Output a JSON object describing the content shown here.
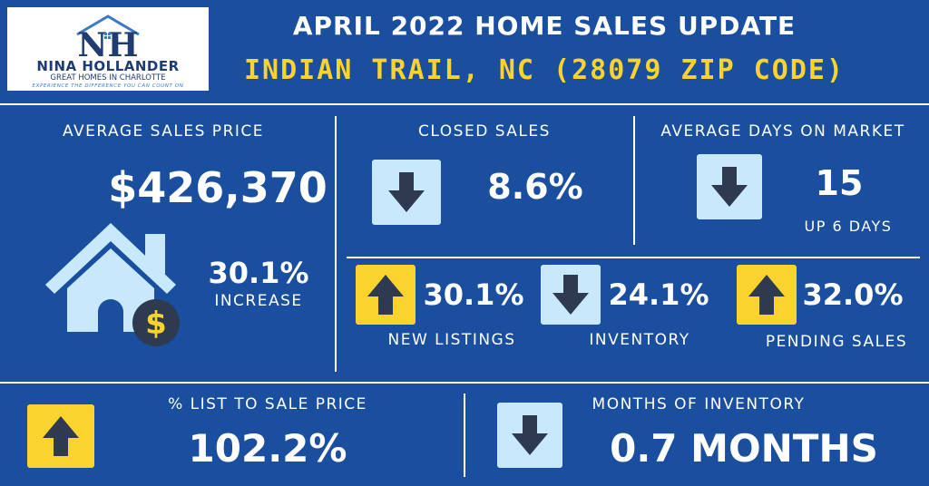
{
  "logo": {
    "monogram": "NH",
    "name": "NINA HOLLANDER",
    "tagline": "GREAT HOMES IN CHARLOTTE",
    "slogan": "EXPERIENCE THE DIFFERENCE YOU CAN COUNT ON"
  },
  "header": {
    "title": "APRIL 2022 HOME SALES UPDATE",
    "subtitle": "INDIAN TRAIL, NC (28079 ZIP CODE)"
  },
  "avg_sales_price": {
    "label": "AVERAGE SALES PRICE",
    "value": "$426,370",
    "change": "30.1%",
    "change_note": "INCREASE",
    "coin_symbol": "$"
  },
  "closed_sales": {
    "label": "CLOSED SALES",
    "value": "8.6%",
    "direction": "down"
  },
  "days_on_market": {
    "label": "AVERAGE DAYS ON MARKET",
    "value": "15",
    "note": "UP 6 DAYS",
    "direction": "down"
  },
  "new_listings": {
    "label": "NEW LISTINGS",
    "value": "30.1%",
    "direction": "up"
  },
  "inventory": {
    "label": "INVENTORY",
    "value": "24.1%",
    "direction": "down"
  },
  "pending_sales": {
    "label": "PENDING SALES",
    "value": "32.0%",
    "direction": "up"
  },
  "list_to_sale": {
    "label": "% LIST TO SALE PRICE",
    "value": "102.2%",
    "direction": "up"
  },
  "months_inventory": {
    "label": "MONTHS OF INVENTORY",
    "value": "0.7 MONTHS",
    "direction": "down"
  },
  "colors": {
    "background": "#1a4fa0",
    "accent_yellow": "#fbd32f",
    "down_box": "#c7e9fb",
    "arrow": "#2d3a4f",
    "house": "#c7e9fb"
  }
}
